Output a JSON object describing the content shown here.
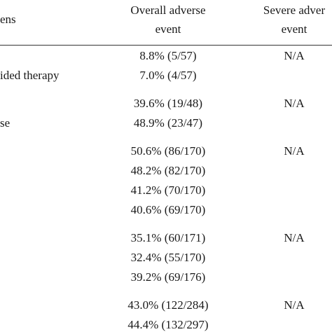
{
  "table": {
    "header": {
      "regimen": "ens",
      "overall": [
        "Overall adverse",
        "event"
      ],
      "severe": [
        "Severe adver",
        "event"
      ]
    },
    "groups": [
      {
        "regimen": "ided therapy",
        "overall": [
          "8.8% (5/57)",
          "7.0% (4/57)"
        ],
        "severe": "N/A"
      },
      {
        "regimen": "se",
        "overall": [
          "39.6% (19/48)",
          "48.9% (23/47)"
        ],
        "severe": "N/A"
      },
      {
        "overall": [
          "50.6% (86/170)",
          "48.2% (82/170)",
          "41.2% (70/170)",
          "40.6% (69/170)"
        ],
        "severe": "N/A"
      },
      {
        "overall": [
          "35.1% (60/171)",
          "32.4% (55/170)",
          "39.2% (69/176)"
        ],
        "severe": "N/A"
      },
      {
        "overall": [
          "43.0% (122/284)",
          "44.4% (132/297)"
        ],
        "severe": "N/A"
      }
    ]
  }
}
